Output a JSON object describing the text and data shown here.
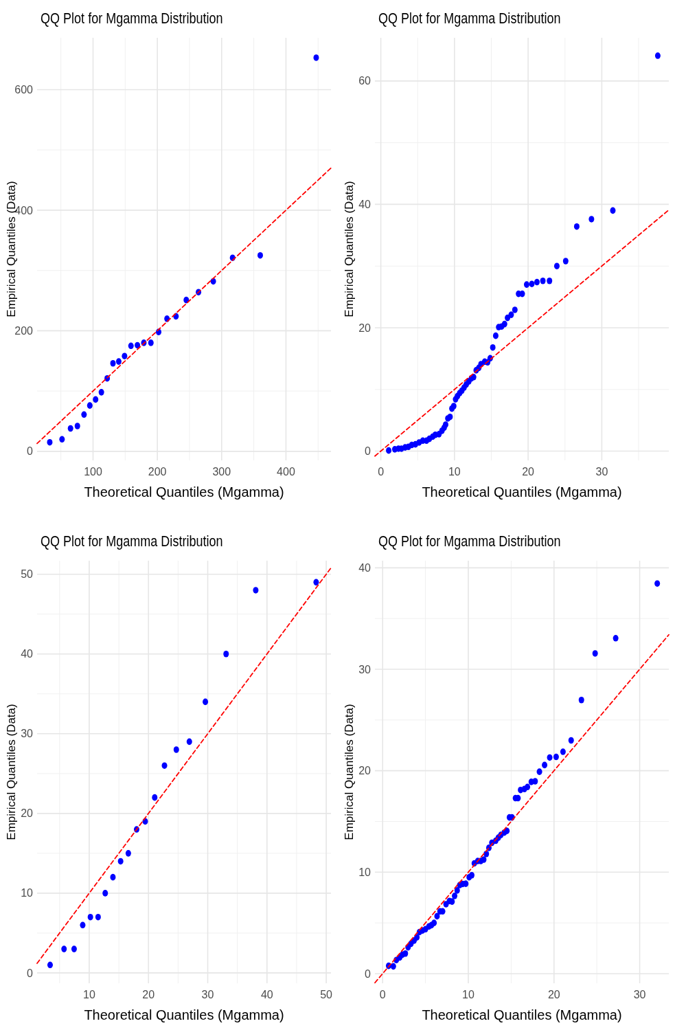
{
  "chart_data": [
    {
      "type": "scatter",
      "title": "QQ Plot for Mgamma Distribution",
      "xlabel": "Theoretical Quantiles (Mgamma)",
      "ylabel": "Empirical Quantiles (Data)",
      "xlim": [
        13,
        470
      ],
      "ylim": [
        -15,
        686
      ],
      "xticks": [
        100,
        200,
        300,
        400
      ],
      "yticks": [
        0,
        200,
        400,
        600
      ],
      "grid": true,
      "series": [
        {
          "type": "scatter",
          "color": "#0000ff",
          "marker": "circle",
          "x": [
            32.7,
            51.8,
            65,
            75.7,
            86,
            95,
            104,
            113,
            122,
            131,
            140,
            149,
            159,
            169,
            179,
            190,
            202,
            215,
            229,
            245,
            264,
            287,
            317,
            360,
            447
          ],
          "values": [
            15,
            20,
            38,
            42,
            61,
            76,
            86,
            98,
            121,
            146,
            149,
            158,
            175,
            176,
            180,
            180,
            198,
            220,
            224,
            251,
            264,
            282,
            321,
            325,
            653
          ]
        },
        {
          "type": "line",
          "color": "#ff0000",
          "line_style": "dashed",
          "x": [
            13,
            470
          ],
          "values": [
            13,
            470
          ]
        }
      ]
    },
    {
      "type": "scatter",
      "title": "QQ Plot for Mgamma Distribution",
      "xlabel": "Theoretical Quantiles (Mgamma)",
      "ylabel": "Empirical Quantiles (Data)",
      "xlim": [
        -0.8,
        39.1
      ],
      "ylim": [
        -1.5,
        67
      ],
      "xticks": [
        0,
        10,
        20,
        30
      ],
      "yticks": [
        0,
        20,
        40,
        60
      ],
      "grid": true,
      "series": [
        {
          "type": "scatter",
          "color": "#0000ff",
          "marker": "circle",
          "x": [
            1.07,
            1.9,
            2.4,
            2.8,
            3.3,
            3.75,
            4.2,
            4.7,
            5.2,
            5.7,
            6.2,
            6.6,
            7.05,
            7.4,
            7.9,
            8.3,
            8.6,
            8.8,
            9.1,
            9.4,
            9.65,
            9.9,
            10.15,
            10.4,
            10.7,
            11,
            11.3,
            11.6,
            11.95,
            12.3,
            12.6,
            12.95,
            13.3,
            13.6,
            14.1,
            14.5,
            14.85,
            15.2,
            15.6,
            16,
            16.4,
            16.8,
            17.2,
            17.7,
            18.2,
            18.7,
            19.2,
            19.8,
            20.5,
            21.2,
            22,
            22.9,
            23.9,
            25.1,
            26.6,
            28.6,
            31.5,
            37.6
          ],
          "values": [
            0.1,
            0.3,
            0.4,
            0.4,
            0.6,
            0.7,
            1,
            1.1,
            1.4,
            1.7,
            1.7,
            2,
            2.35,
            2.65,
            2.75,
            3.3,
            3.8,
            4.3,
            5.3,
            5.55,
            6.9,
            7.3,
            8.4,
            8.9,
            9.4,
            9.8,
            10.3,
            10.8,
            11.3,
            11.8,
            12,
            13.1,
            13.5,
            14.1,
            14.5,
            14.4,
            15.05,
            16.8,
            18.7,
            20.1,
            20.2,
            20.6,
            21.6,
            22.1,
            22.9,
            25.5,
            25.5,
            27,
            27.1,
            27.4,
            27.6,
            27.6,
            30,
            30.8,
            36.4,
            37.6,
            39,
            64.1
          ]
        },
        {
          "type": "line",
          "color": "#ff0000",
          "line_style": "dashed",
          "x": [
            -0.8,
            39.1
          ],
          "values": [
            -0.8,
            39.1
          ]
        }
      ]
    },
    {
      "type": "scatter",
      "title": "QQ Plot for Mgamma Distribution",
      "xlabel": "Theoretical Quantiles (Mgamma)",
      "ylabel": "Empirical Quantiles (Data)",
      "xlim": [
        1.2,
        50.8
      ],
      "ylim": [
        -1.3,
        51.7
      ],
      "xticks": [
        10,
        20,
        30,
        40,
        50
      ],
      "yticks": [
        0,
        10,
        20,
        30,
        40,
        50
      ],
      "grid": true,
      "series": [
        {
          "type": "scatter",
          "color": "#0000ff",
          "marker": "circle",
          "x": [
            3.4,
            5.75,
            7.45,
            8.9,
            10.2,
            11.5,
            12.7,
            14,
            15.3,
            16.6,
            18,
            19.45,
            21.05,
            22.7,
            24.7,
            26.9,
            29.6,
            33.1,
            38.1,
            48.3
          ],
          "values": [
            1,
            3,
            3,
            6,
            7,
            7,
            10,
            12,
            14,
            15,
            18,
            19,
            22,
            26,
            28,
            29,
            34,
            40,
            48,
            49
          ]
        },
        {
          "type": "line",
          "color": "#ff0000",
          "line_style": "dashed",
          "x": [
            1.2,
            50.8
          ],
          "values": [
            1.2,
            50.8
          ]
        }
      ]
    },
    {
      "type": "scatter",
      "title": "QQ Plot for Mgamma Distribution",
      "xlabel": "Theoretical Quantiles (Mgamma)",
      "ylabel": "Empirical Quantiles (Data)",
      "xlim": [
        -0.9,
        33.4
      ],
      "ylim": [
        -0.95,
        40.7
      ],
      "xticks": [
        0,
        10,
        20,
        30
      ],
      "yticks": [
        0,
        10,
        20,
        30,
        40
      ],
      "grid": true,
      "series": [
        {
          "type": "scatter",
          "color": "#0000ff",
          "marker": "circle",
          "x": [
            0.7,
            1.25,
            1.6,
            2,
            2.3,
            2.65,
            2.97,
            3.3,
            3.67,
            4,
            4.3,
            4.65,
            5,
            5.4,
            5.7,
            6,
            6.35,
            6.7,
            7,
            7.4,
            7.8,
            8.1,
            8.4,
            8.7,
            9,
            9.35,
            9.7,
            10.1,
            10.4,
            10.7,
            11.1,
            11.45,
            11.8,
            12.1,
            12.4,
            12.75,
            13.2,
            13.5,
            13.8,
            14.2,
            14.5,
            14.8,
            15.1,
            15.5,
            15.8,
            16.1,
            16.55,
            16.9,
            17.35,
            17.8,
            18.3,
            18.9,
            19.5,
            20.25,
            21.05,
            22,
            23.2,
            24.8,
            27.2,
            32.05
          ],
          "values": [
            0.77,
            0.72,
            1.34,
            1.6,
            1.87,
            1.98,
            2.6,
            2.94,
            3.26,
            3.58,
            4.1,
            4.25,
            4.38,
            4.65,
            4.78,
            5,
            5.66,
            6.14,
            6.14,
            6.84,
            7.16,
            7.1,
            7.66,
            8.2,
            8.73,
            8.84,
            8.86,
            9.5,
            9.7,
            10.87,
            11.1,
            11.1,
            11.24,
            11.8,
            12.4,
            12.9,
            13.1,
            13.4,
            13.67,
            13.9,
            14.07,
            15.4,
            15.4,
            17.3,
            17.3,
            18.1,
            18.2,
            18.4,
            18.9,
            18.96,
            19.9,
            20.56,
            21.3,
            21.36,
            21.87,
            22.99,
            26.97,
            31.56,
            33.06,
            38.45
          ]
        },
        {
          "type": "line",
          "color": "#ff0000",
          "line_style": "dashed",
          "x": [
            -0.9,
            33.4
          ],
          "values": [
            -0.9,
            33.4
          ]
        }
      ]
    }
  ]
}
